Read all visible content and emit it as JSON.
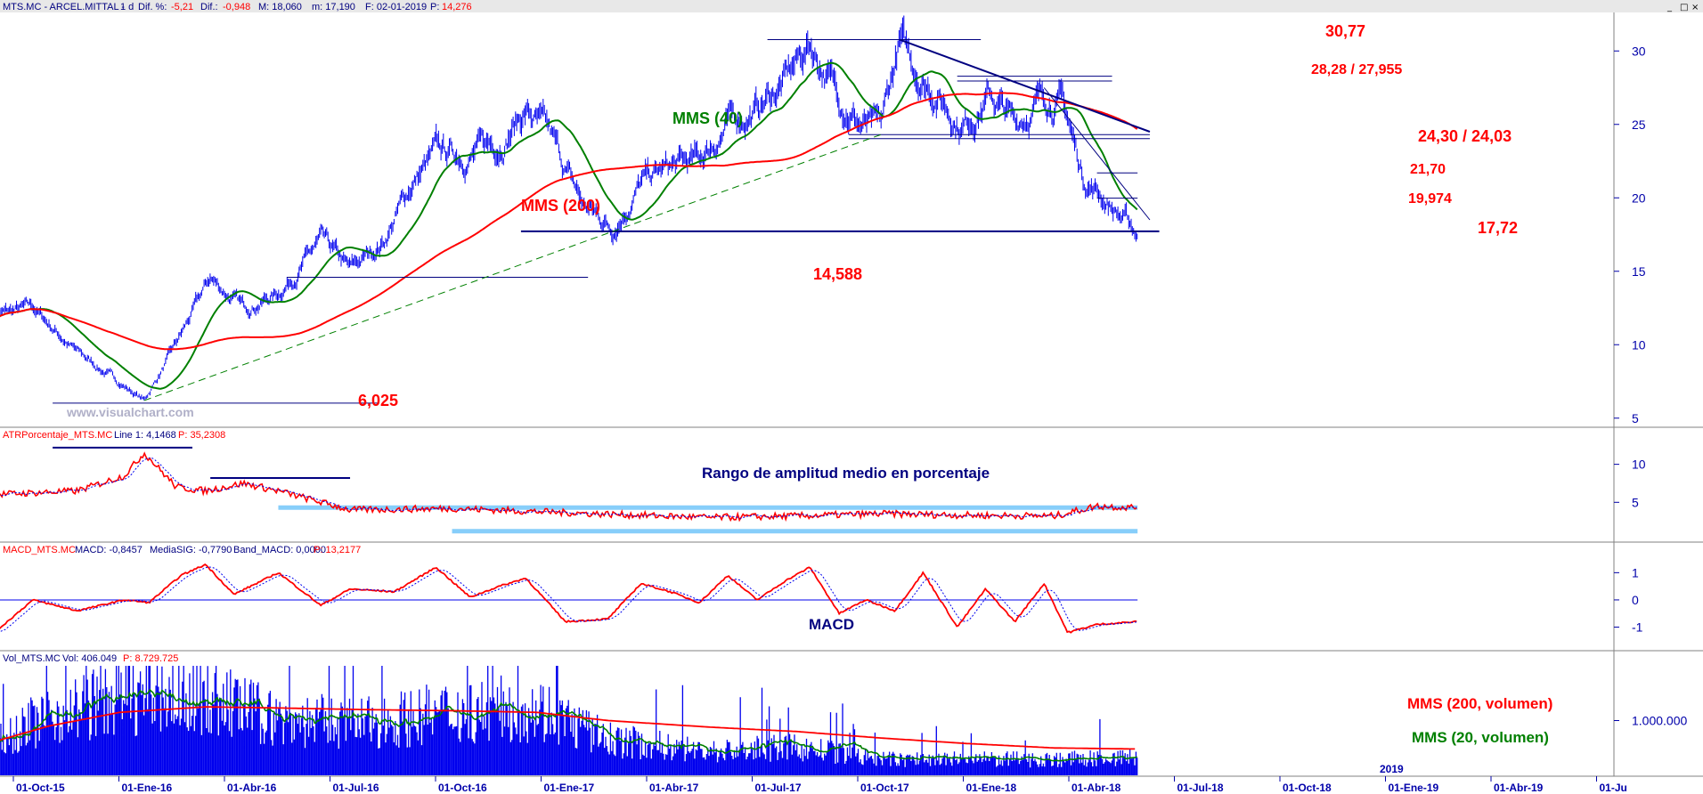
{
  "header": {
    "symbol": "MTS.MC - ARCEL.MITTAL -",
    "period": "1 d",
    "dif_pct_label": "Dif. %:",
    "dif_pct": "-5,21",
    "dif_label": "Dif.:",
    "dif": "-0,948",
    "m_label": "M: 18,060",
    "m_value": "m: 17,190",
    "f_label": "F: 02-01-2019",
    "p_label": "P:",
    "p_value": "14,276"
  },
  "watermark": "www.visualchart.com",
  "panels": {
    "atr": {
      "header_name": "ATRPorcentaje_MTS.MC",
      "header_line": "Line 1: 4,1468",
      "header_p": "P: 35,2308",
      "title": "Rango de amplitud medio en porcentaje"
    },
    "macd": {
      "header_name": "MACD_MTS.MC",
      "header_macd": "MACD: -0,8457",
      "header_sig": "MediaSIG: -0,7790",
      "header_band": "Band_MACD: 0,0000",
      "header_p": "P: 13,2177",
      "title": "MACD"
    },
    "vol": {
      "header_name": "Vol_MTS.MC",
      "header_vol": "Vol: 406.049",
      "header_p": "P: 8.729.725",
      "legend_200": "MMS (200, volumen)",
      "legend_20": "MMS (20, volumen)"
    }
  },
  "colors": {
    "price": "#0000ee",
    "mms40": "#008000",
    "mms200": "#ff0000",
    "levels": "#000080",
    "annot": "#ff0000",
    "atr_band": "#87cefa",
    "axis": "#0000aa"
  },
  "chart_data": [
    {
      "type": "line",
      "name": "price",
      "x": [
        "2015-09-01",
        "2015-10-15",
        "2015-12-01",
        "2016-01-20",
        "2016-02-10",
        "2016-03-15",
        "2016-04-20",
        "2016-05-25",
        "2016-07-01",
        "2016-08-15",
        "2016-09-15",
        "2016-10-20",
        "2016-11-20",
        "2016-12-15",
        "2017-01-20",
        "2017-02-20",
        "2017-03-20",
        "2017-04-15",
        "2017-05-20",
        "2017-06-20",
        "2017-07-20",
        "2017-08-20",
        "2017-09-20",
        "2017-10-20",
        "2017-11-20",
        "2017-12-20",
        "2018-01-15",
        "2018-02-10",
        "2018-03-10",
        "2018-03-31",
        "2018-04-20",
        "2018-05-10",
        "2018-06-01",
        "2018-06-25",
        "2018-07-25",
        "2018-08-20",
        "2018-09-20",
        "2018-10-10",
        "2018-10-31",
        "2018-11-30",
        "2018-12-28"
      ],
      "y": [
        12,
        12.5,
        9.5,
        7.2,
        6.2,
        10,
        14.5,
        12.5,
        13.5,
        17,
        15,
        17,
        21,
        23,
        23,
        23.8,
        26,
        24,
        19.5,
        18,
        21,
        22,
        22.5,
        25,
        26,
        28,
        30.5,
        27.5,
        25,
        24.5,
        30.5,
        28.5,
        27,
        25,
        27,
        25,
        27,
        26.5,
        21.5,
        19.5,
        17.5
      ],
      "ylim": [
        4.5,
        32.5
      ],
      "yticks": [
        5,
        10,
        15,
        20,
        25,
        30
      ],
      "series_labels": {
        "mms40": "MMS (40)",
        "mms200": "MMS (200)"
      },
      "annotations": [
        "30,77",
        "28,28 / 27,955",
        "24,30 / 24,03",
        "21,70",
        "19,974",
        "17,72",
        "14,588",
        "6,025"
      ]
    },
    {
      "type": "line",
      "name": "ATR %",
      "x": [
        "2015-09-01",
        "2015-12-01",
        "2016-01-20",
        "2016-02-10",
        "2016-03-15",
        "2016-04-15",
        "2016-05-25",
        "2016-07-01",
        "2016-09-15",
        "2017-01-01",
        "2017-06-01",
        "2017-10-01",
        "2018-01-01",
        "2018-04-01",
        "2018-07-01",
        "2018-10-01",
        "2018-11-15",
        "2018-12-28"
      ],
      "y": [
        6,
        6.5,
        8.5,
        11.5,
        7,
        6.5,
        7.5,
        6.5,
        4,
        4.2,
        3.5,
        3,
        3.2,
        3.5,
        3.3,
        3.2,
        4.5,
        4.3
      ],
      "ylim": [
        0,
        13
      ],
      "yticks": [
        5,
        10
      ]
    },
    {
      "type": "line",
      "name": "MACD",
      "x": [
        "2015-09-01",
        "2015-10-15",
        "2015-12-01",
        "2016-01-20",
        "2016-02-15",
        "2016-03-20",
        "2016-04-15",
        "2016-05-15",
        "2016-07-01",
        "2016-08-15",
        "2016-09-15",
        "2016-11-01",
        "2016-12-15",
        "2017-01-20",
        "2017-02-20",
        "2017-03-20",
        "2017-05-01",
        "2017-06-15",
        "2017-07-20",
        "2017-08-20",
        "2017-09-20",
        "2017-10-20",
        "2017-11-20",
        "2017-12-20",
        "2018-01-15",
        "2018-02-15",
        "2018-03-15",
        "2018-04-15",
        "2018-05-15",
        "2018-06-20",
        "2018-07-20",
        "2018-08-20",
        "2018-09-20",
        "2018-10-15",
        "2018-11-15",
        "2018-12-28"
      ],
      "y": [
        -1.3,
        0,
        -0.4,
        0,
        -0.1,
        0.9,
        1.3,
        0.2,
        1,
        -0.2,
        0.4,
        0.3,
        1.2,
        0.1,
        0.5,
        0.8,
        -0.8,
        -0.7,
        0.6,
        0.3,
        -0.1,
        0.9,
        0,
        0.7,
        1.2,
        -0.5,
        0,
        -0.4,
        1,
        -1,
        0.4,
        -0.8,
        0.6,
        -1.2,
        -0.9,
        -0.8
      ],
      "signal_level": 0,
      "ylim": [
        -1.8,
        1.6
      ],
      "yticks": [
        1,
        0,
        -1
      ]
    },
    {
      "type": "bar",
      "name": "Volumen",
      "x_start": "2015-09-01",
      "x_end": "2018-12-28",
      "envelope_x": [
        "2015-09-01",
        "2015-11-01",
        "2016-01-15",
        "2016-04-15",
        "2016-07-01",
        "2016-10-01",
        "2017-01-01",
        "2017-04-01",
        "2017-06-15",
        "2017-10-01",
        "2018-01-01",
        "2018-04-01",
        "2018-07-01",
        "2018-10-01",
        "2018-12-28"
      ],
      "envelope_y": [
        900000,
        1500000,
        2000000,
        2000000,
        1400000,
        1300000,
        1600000,
        1700000,
        900000,
        600000,
        700000,
        400000,
        400000,
        400000,
        450000
      ],
      "mms200_y": [
        600000,
        900000,
        1150000,
        1250000,
        1230000,
        1200000,
        1180000,
        1150000,
        1000000,
        880000,
        800000,
        680000,
        580000,
        500000,
        480000
      ],
      "ylim": [
        0,
        2000000
      ],
      "yticks": [
        "1.000.000"
      ]
    }
  ],
  "x_axis": {
    "labels": [
      "01-Oct-15",
      "01-Ene-16",
      "01-Abr-16",
      "01-Jul-16",
      "01-Oct-16",
      "01-Ene-17",
      "01-Abr-17",
      "01-Jul-17",
      "01-Oct-17",
      "01-Ene-18",
      "01-Abr-18",
      "01-Jul-18",
      "01-Oct-18",
      "01-Ene-19",
      "01-Abr-19",
      "01-Ju"
    ],
    "year_marker": "2019"
  }
}
